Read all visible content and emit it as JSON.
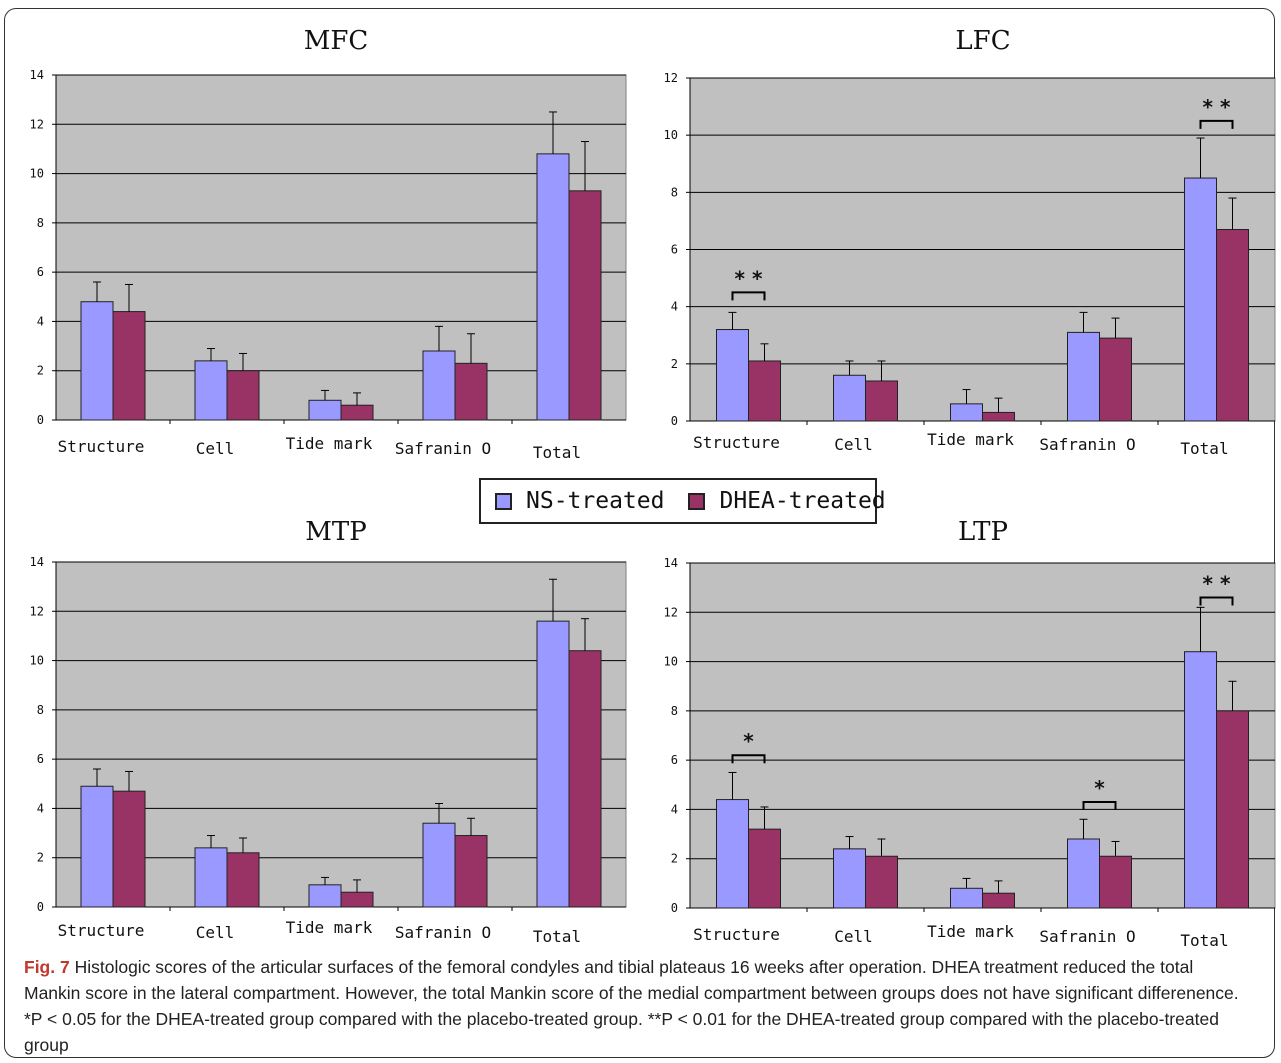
{
  "colors": {
    "ns": "#9999ff",
    "dhea": "#993366",
    "plot_bg": "#c0c0c0",
    "grid": "#000000",
    "caption_label": "#c0392b"
  },
  "legend": {
    "items": [
      {
        "label": "NS-treated",
        "color": "#9999ff"
      },
      {
        "label": "DHEA-treated",
        "color": "#993366"
      }
    ]
  },
  "caption": {
    "label": "Fig. 7",
    "text": "Histologic scores of the articular surfaces of the femoral condyles and tibial plateaus 16 weeks after operation. DHEA treatment reduced the total Mankin score in the lateral compartment. However, the total Mankin score of the medial compartment between groups does not have significant differenence. *P < 0.05 for the DHEA-treated group compared with the placebo-treated group. **P < 0.01 for the DHEA-treated group compared with the placebo-treated group"
  },
  "chart_data": [
    {
      "id": "MFC",
      "type": "bar",
      "title": "MFC",
      "categories": [
        "Structure",
        "Cell",
        "Tide mark",
        "Safranin O",
        "Total"
      ],
      "ylim": [
        0,
        14
      ],
      "yticks": [
        "0",
        "2",
        "4",
        "6",
        "8",
        "10",
        "12",
        "14"
      ],
      "grid": true,
      "series": [
        {
          "name": "NS-treated",
          "values": [
            4.8,
            2.4,
            0.8,
            2.8,
            10.8
          ],
          "errors": [
            0.8,
            0.5,
            0.4,
            1.0,
            1.7
          ]
        },
        {
          "name": "DHEA-treated",
          "values": [
            4.4,
            2.0,
            0.6,
            2.3,
            9.3
          ],
          "errors": [
            1.1,
            0.7,
            0.5,
            1.2,
            2.0
          ]
        }
      ],
      "significance": []
    },
    {
      "id": "LFC",
      "type": "bar",
      "title": "LFC",
      "categories": [
        "Structure",
        "Cell",
        "Tide mark",
        "Safranin O",
        "Total"
      ],
      "ylim": [
        0,
        12
      ],
      "yticks": [
        "0",
        "2",
        "4",
        "6",
        "8",
        "10",
        "12"
      ],
      "grid": true,
      "series": [
        {
          "name": "NS-treated",
          "values": [
            3.2,
            1.6,
            0.6,
            3.1,
            8.5
          ],
          "errors": [
            0.6,
            0.5,
            0.5,
            0.7,
            1.4
          ]
        },
        {
          "name": "DHEA-treated",
          "values": [
            2.1,
            1.4,
            0.3,
            2.9,
            6.7
          ],
          "errors": [
            0.6,
            0.7,
            0.5,
            0.7,
            1.1
          ]
        }
      ],
      "significance": [
        {
          "category": 0,
          "label": "* *",
          "at": 4.5
        },
        {
          "category": 4,
          "label": "* *",
          "at": 10.5
        }
      ]
    },
    {
      "id": "MTP",
      "type": "bar",
      "title": "MTP",
      "categories": [
        "Structure",
        "Cell",
        "Tide mark",
        "Safranin O",
        "Total"
      ],
      "ylim": [
        0,
        14
      ],
      "yticks": [
        "0",
        "2",
        "4",
        "6",
        "8",
        "10",
        "12",
        "14"
      ],
      "grid": true,
      "series": [
        {
          "name": "NS-treated",
          "values": [
            4.9,
            2.4,
            0.9,
            3.4,
            11.6
          ],
          "errors": [
            0.7,
            0.5,
            0.3,
            0.8,
            1.7
          ]
        },
        {
          "name": "DHEA-treated",
          "values": [
            4.7,
            2.2,
            0.6,
            2.9,
            10.4
          ],
          "errors": [
            0.8,
            0.6,
            0.5,
            0.7,
            1.3
          ]
        }
      ],
      "significance": []
    },
    {
      "id": "LTP",
      "type": "bar",
      "title": "LTP",
      "categories": [
        "Structure",
        "Cell",
        "Tide mark",
        "Safranin O",
        "Total"
      ],
      "ylim": [
        0,
        14
      ],
      "yticks": [
        "0",
        "2",
        "4",
        "6",
        "8",
        "10",
        "12",
        "14"
      ],
      "grid": true,
      "series": [
        {
          "name": "NS-treated",
          "values": [
            4.4,
            2.4,
            0.8,
            2.8,
            10.4
          ],
          "errors": [
            1.1,
            0.5,
            0.4,
            0.8,
            1.8
          ]
        },
        {
          "name": "DHEA-treated",
          "values": [
            3.2,
            2.1,
            0.6,
            2.1,
            8.0
          ],
          "errors": [
            0.9,
            0.7,
            0.5,
            0.6,
            1.2
          ]
        }
      ],
      "significance": [
        {
          "category": 0,
          "label": "*",
          "at": 6.2
        },
        {
          "category": 3,
          "label": "*",
          "at": 4.3
        },
        {
          "category": 4,
          "label": "* *",
          "at": 12.6
        }
      ]
    }
  ]
}
